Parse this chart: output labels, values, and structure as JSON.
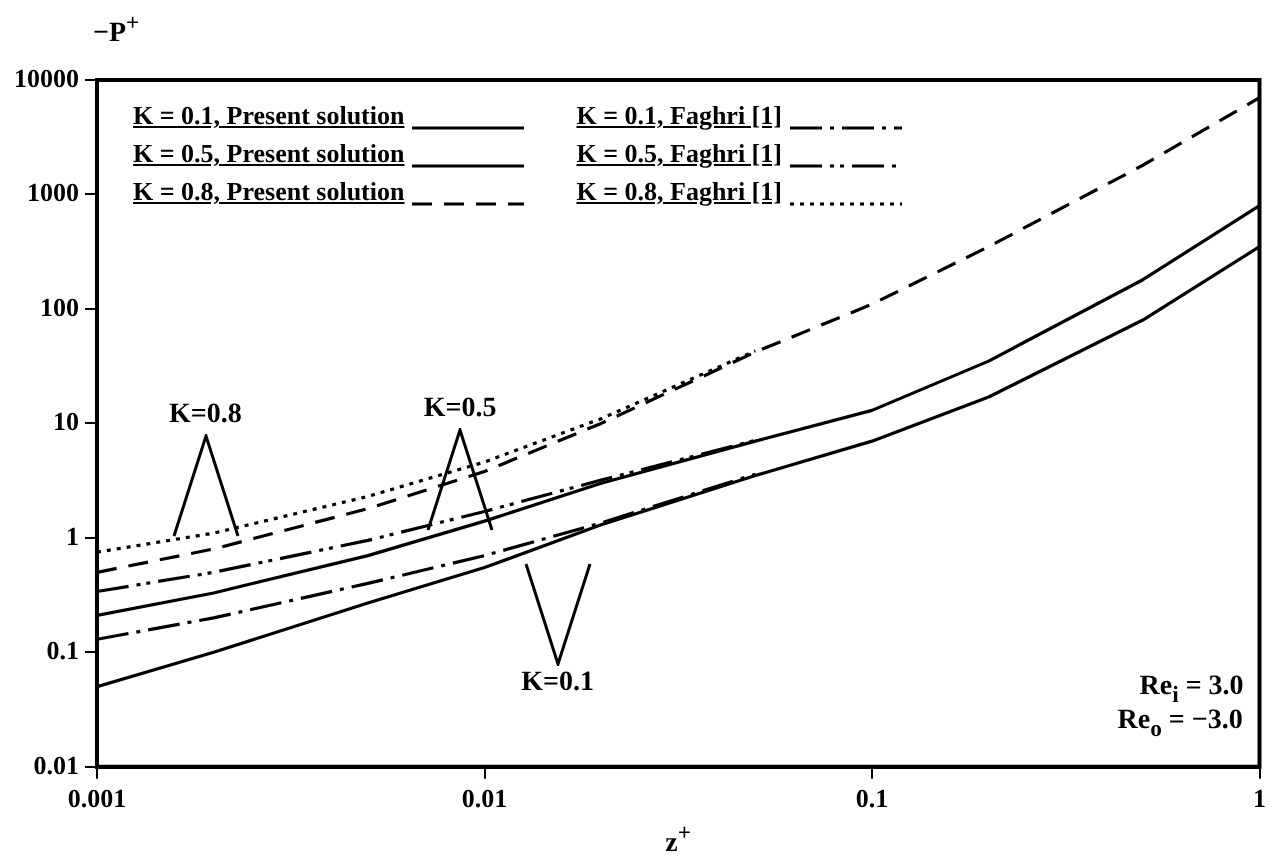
{
  "chart_data": {
    "type": "line",
    "xlabel": "z$^{+}$",
    "ylabel": "−P$^{+}$",
    "log": "xy",
    "grid": false,
    "legend": "top left",
    "marker": "none",
    "x": [
      0.001,
      0.002,
      0.005,
      0.01,
      0.02,
      0.05,
      0.1,
      0.2,
      0.5,
      1
    ],
    "xlim": [
      0.001,
      1
    ],
    "xticks": [
      0.001,
      0.01,
      0.1,
      1
    ],
    "ylim": [
      0.01,
      10000
    ],
    "yticks": [
      0.01,
      0.1,
      1,
      10,
      100,
      1000,
      10000
    ],
    "series": [
      {
        "name": "K = 0.1, Present solution",
        "color": "#000000",
        "line_style": "solid",
        "values": [
          0.05,
          0.1,
          0.27,
          0.55,
          1.3,
          3.5,
          7,
          17,
          80,
          350
        ]
      },
      {
        "name": "K = 0.5, Present solution",
        "color": "#000000",
        "line_style": "solid",
        "values": [
          0.21,
          0.33,
          0.7,
          1.4,
          3,
          7,
          13,
          35,
          180,
          800
        ]
      },
      {
        "name": "K = 0.8, Present solution",
        "color": "#000000",
        "line_style": "dashed",
        "values": [
          0.5,
          0.8,
          1.8,
          3.8,
          10,
          42,
          110,
          350,
          1800,
          7000
        ]
      },
      {
        "name": "K = 0.1, Faghri [1]",
        "color": "#000000",
        "line_style": "dashdot",
        "values": [
          0.13,
          0.2,
          0.4,
          0.7,
          1.35,
          3.6,
          null,
          null,
          null,
          null
        ]
      },
      {
        "name": "K = 0.5, Faghri [1]",
        "color": "#000000",
        "line_style": "dashdotdot",
        "values": [
          0.34,
          0.5,
          0.95,
          1.7,
          3.2,
          7.1,
          null,
          null,
          null,
          null
        ]
      },
      {
        "name": "K = 0.8, Faghri [1]",
        "color": "#000000",
        "line_style": "dotted",
        "values": [
          0.75,
          1.1,
          2.3,
          4.6,
          11,
          43,
          null,
          null,
          null,
          null
        ]
      }
    ],
    "annotations": [
      "K=0.8",
      "K=0.5",
      "K=0.1",
      "Re$_{i}$ = 3.0",
      "Re$_{o}$ = −3.0"
    ]
  }
}
